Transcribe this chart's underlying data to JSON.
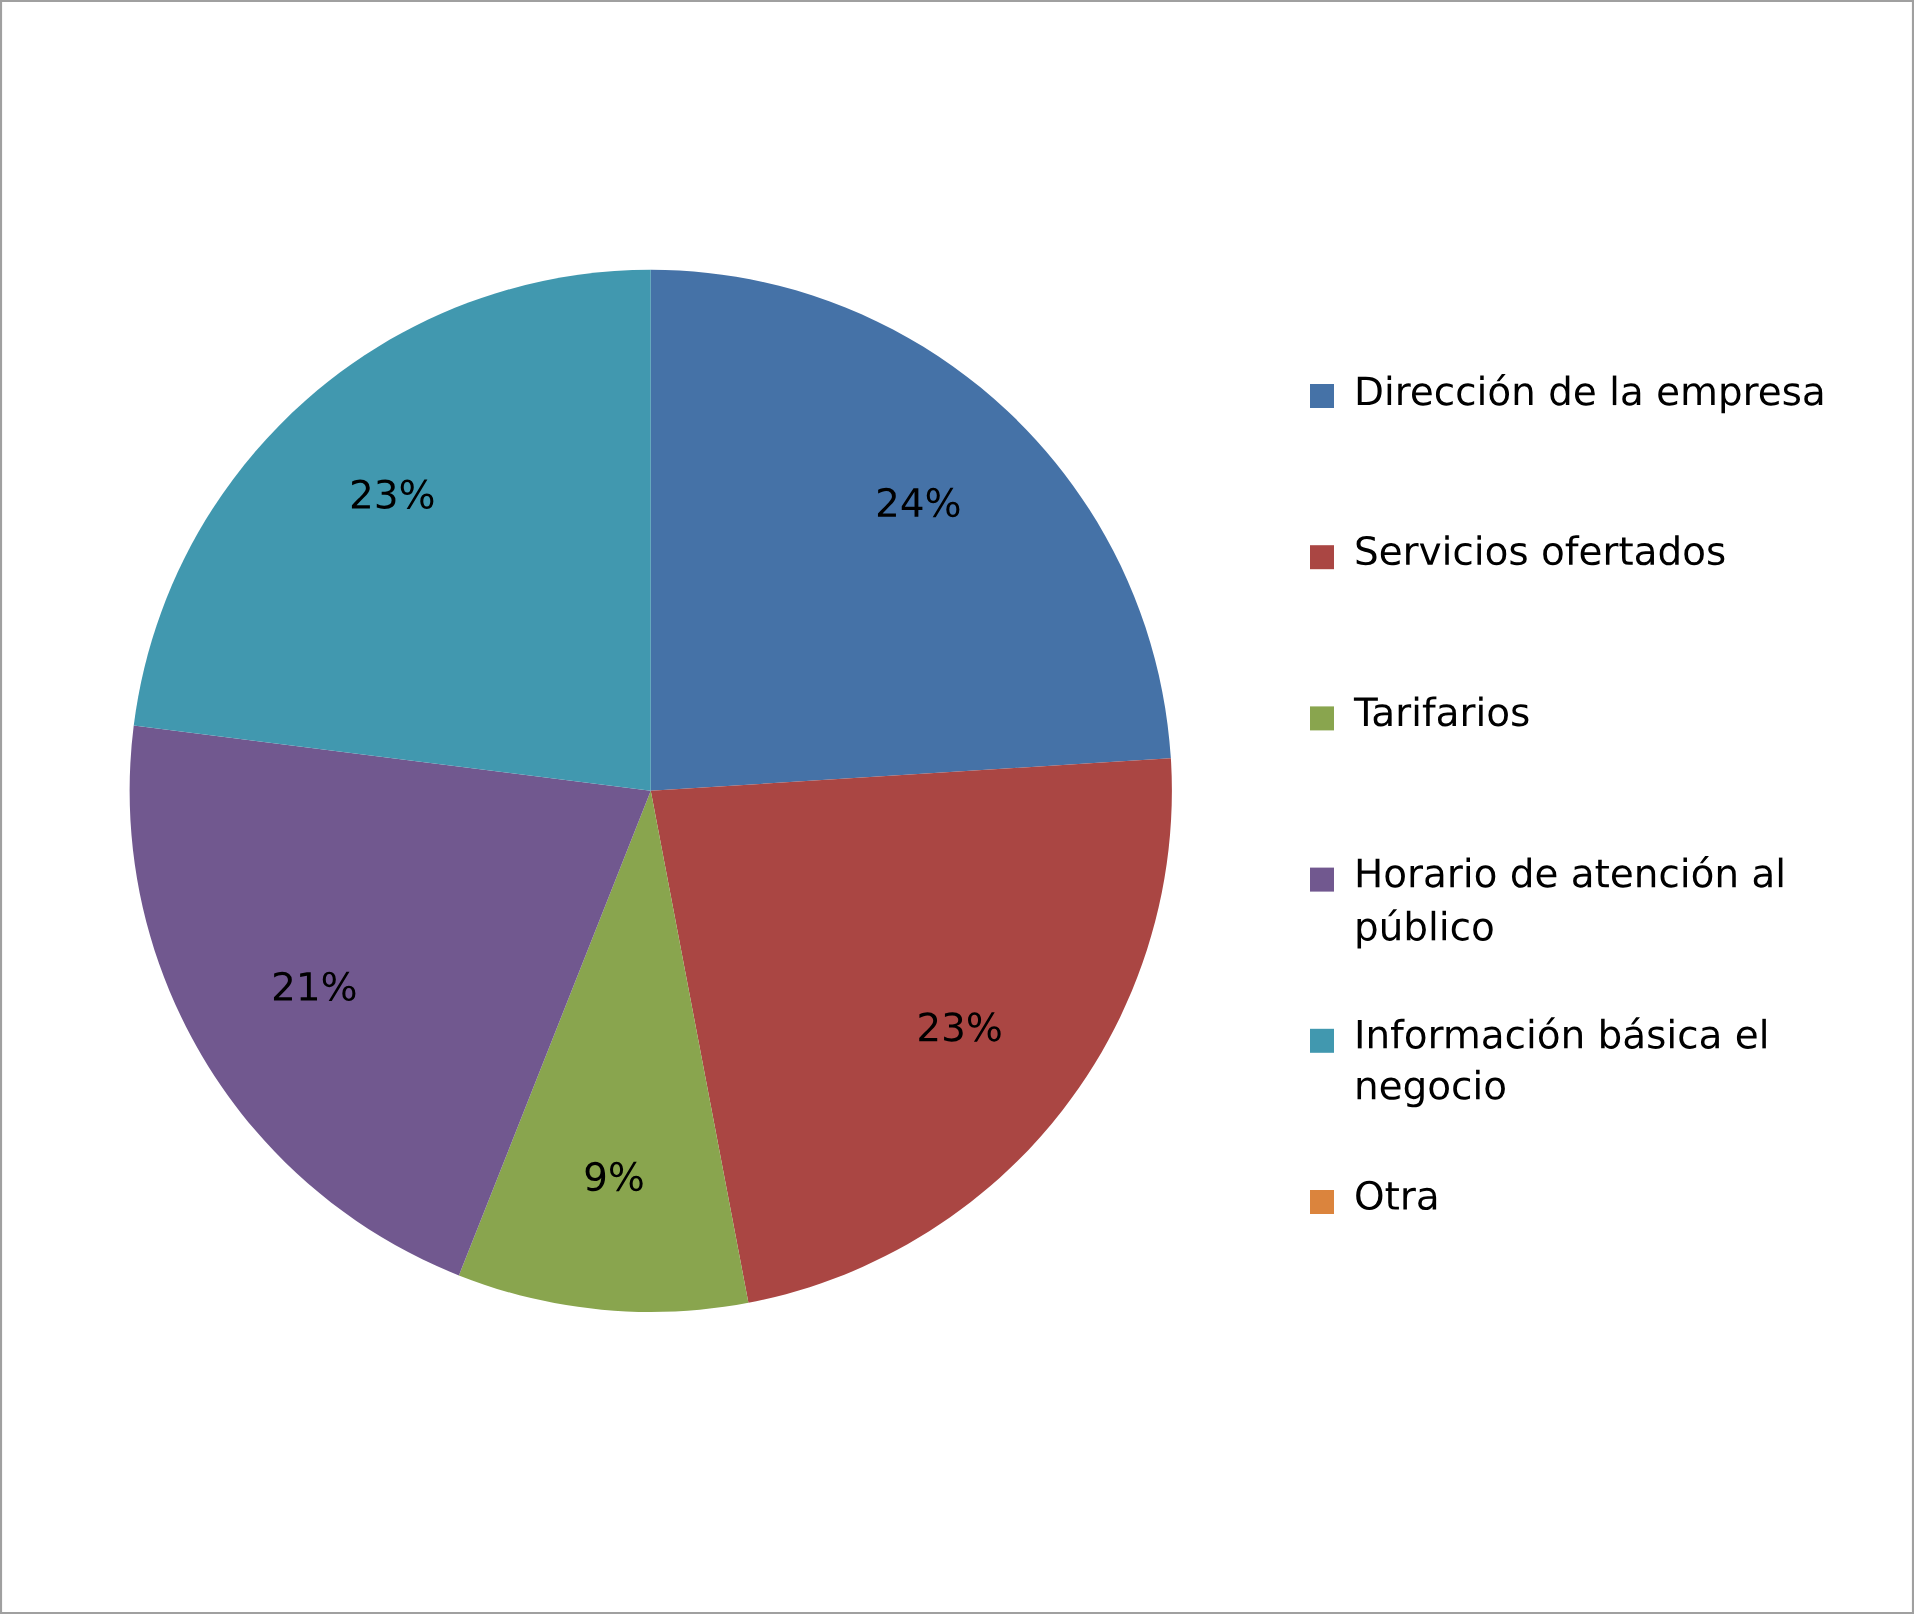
{
  "chart_data": {
    "type": "pie",
    "categories": [
      "Dirección de la empresa",
      "Servicios ofertados",
      "Tarifarios",
      "Horario de atención al público",
      "Información básica el negocio",
      "Otra"
    ],
    "values": [
      24,
      23,
      9,
      21,
      23,
      0
    ],
    "value_labels": [
      "24%",
      "23%",
      "9%",
      "21%",
      "23%",
      null
    ],
    "colors": [
      "#4572a7",
      "#aa4643",
      "#89a54e",
      "#71588f",
      "#4198af",
      "#db843d"
    ],
    "legend": "right"
  }
}
